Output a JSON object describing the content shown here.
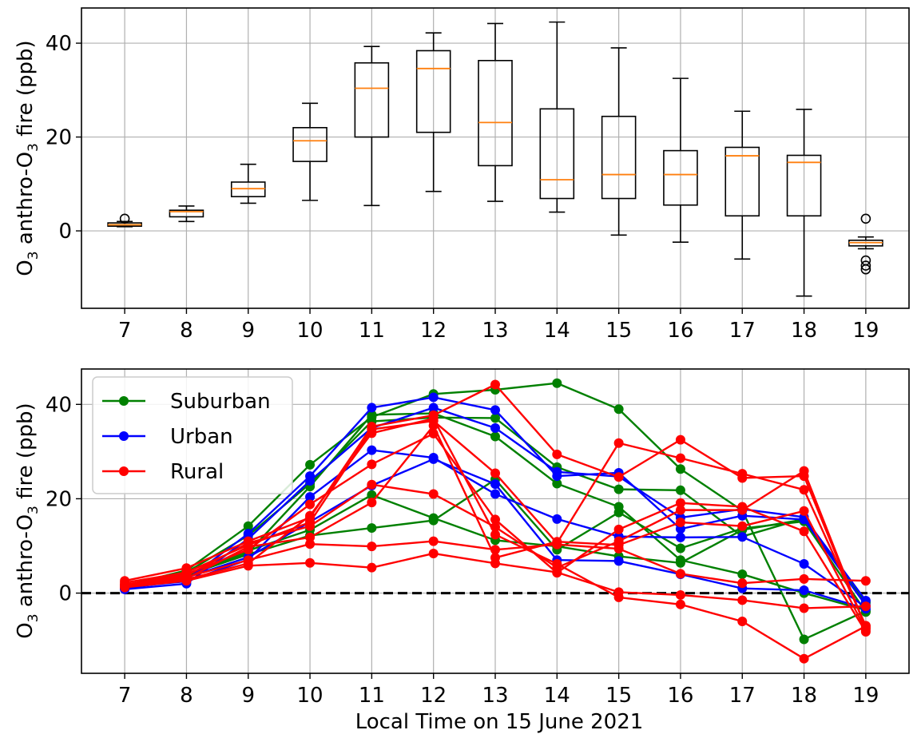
{
  "chart_data": [
    {
      "type": "box",
      "ylabel": "O3 anthro-O3 fire (ppb)",
      "ylabel_parts": {
        "pre": "O",
        "sub1": "3",
        "mid": " anthro-O",
        "sub2": "3",
        "post": " fire (ppb)"
      },
      "ylim": [
        -16.5,
        47.5
      ],
      "yticks": [
        0,
        20,
        40
      ],
      "grid": true,
      "categories": [
        "7",
        "8",
        "9",
        "10",
        "11",
        "12",
        "13",
        "14",
        "15",
        "16",
        "17",
        "18",
        "19"
      ],
      "boxes": [
        {
          "whislo": 0.9,
          "q1": 1.0,
          "med": 1.3,
          "q3": 1.7,
          "whishi": 2.0,
          "fliers": [
            2.6
          ]
        },
        {
          "whislo": 2.0,
          "q1": 3.0,
          "med": 4.1,
          "q3": 4.4,
          "whishi": 5.3,
          "fliers": []
        },
        {
          "whislo": 5.9,
          "q1": 7.3,
          "med": 9.0,
          "q3": 10.4,
          "whishi": 14.2,
          "fliers": []
        },
        {
          "whislo": 6.5,
          "q1": 14.8,
          "med": 19.2,
          "q3": 22.0,
          "whishi": 27.2,
          "fliers": []
        },
        {
          "whislo": 5.4,
          "q1": 20.0,
          "med": 30.4,
          "q3": 35.8,
          "whishi": 39.3,
          "fliers": []
        },
        {
          "whislo": 8.4,
          "q1": 21.0,
          "med": 34.6,
          "q3": 38.4,
          "whishi": 42.2,
          "fliers": []
        },
        {
          "whislo": 6.3,
          "q1": 13.9,
          "med": 23.1,
          "q3": 36.3,
          "whishi": 44.2,
          "fliers": []
        },
        {
          "whislo": 4.0,
          "q1": 6.9,
          "med": 10.9,
          "q3": 26.0,
          "whishi": 44.5,
          "fliers": []
        },
        {
          "whislo": -0.9,
          "q1": 6.9,
          "med": 12.0,
          "q3": 24.4,
          "whishi": 39.0,
          "fliers": []
        },
        {
          "whislo": -2.4,
          "q1": 5.5,
          "med": 12.0,
          "q3": 17.1,
          "whishi": 32.5,
          "fliers": []
        },
        {
          "whislo": -6.0,
          "q1": 3.2,
          "med": 16.0,
          "q3": 17.8,
          "whishi": 25.5,
          "fliers": []
        },
        {
          "whislo": -13.9,
          "q1": 3.2,
          "med": 14.6,
          "q3": 16.1,
          "whishi": 25.9,
          "fliers": []
        },
        {
          "whislo": -3.8,
          "q1": -3.2,
          "med": -2.5,
          "q3": -2.0,
          "whishi": -1.3,
          "fliers": [
            2.6,
            -6.3,
            -7.4,
            -8.2
          ]
        }
      ]
    },
    {
      "type": "line",
      "xlabel": "Local Time on 15 June 2021",
      "ylabel": "O3 anthro-O3 fire (ppb)",
      "ylabel_parts": {
        "pre": "O",
        "sub1": "3",
        "mid": " anthro-O",
        "sub2": "3",
        "post": " fire (ppb)"
      },
      "xlim": [
        6.3,
        19.7
      ],
      "ylim": [
        -17,
        47.5
      ],
      "yticks": [
        0,
        20,
        40
      ],
      "grid": true,
      "legend": "top-left",
      "reference_line": {
        "y": 0,
        "style": "dashed",
        "color": "#000000"
      },
      "x": [
        7,
        8,
        9,
        10,
        11,
        12,
        13,
        14,
        15,
        16,
        17,
        18,
        19
      ],
      "colors": {
        "Suburban": "#008000",
        "Urban": "#0000ff",
        "Rural": "#ff0000"
      },
      "legend_entries": [
        "Suburban",
        "Urban",
        "Rural"
      ],
      "series": [
        {
          "group": "Suburban",
          "values": [
            1.6,
            4.8,
            14.2,
            27.2,
            37.3,
            42.2,
            43.1,
            44.5,
            39.0,
            26.3,
            17.5,
            -9.8,
            -3.8
          ]
        },
        {
          "group": "Suburban",
          "values": [
            1.2,
            4.4,
            12.2,
            23.2,
            36.4,
            37.2,
            37.1,
            26.7,
            22.0,
            21.8,
            12.0,
            15.8,
            -2.1
          ]
        },
        {
          "group": "Suburban",
          "values": [
            1.0,
            3.6,
            8.6,
            22.6,
            37.8,
            38.1,
            33.2,
            23.2,
            18.3,
            7.0,
            4.0,
            0.0,
            -3.6
          ]
        },
        {
          "group": "Suburban",
          "values": [
            1.5,
            3.8,
            8.2,
            12.2,
            13.8,
            15.4,
            24.1,
            9.2,
            17.1,
            9.5,
            13.7,
            15.2,
            -4.0
          ]
        },
        {
          "group": "Suburban",
          "values": [
            1.3,
            4.0,
            9.0,
            13.4,
            20.8,
            15.9,
            11.2,
            9.9,
            7.8,
            6.4,
            13.4,
            15.6,
            -1.8
          ]
        },
        {
          "group": "Urban",
          "values": [
            1.0,
            2.8,
            12.6,
            24.8,
            39.3,
            41.5,
            38.8,
            24.8,
            25.5,
            13.6,
            16.4,
            15.6,
            -2.6
          ]
        },
        {
          "group": "Urban",
          "values": [
            0.8,
            2.0,
            11.5,
            23.8,
            35.0,
            39.3,
            35.0,
            25.7,
            24.7,
            16.0,
            17.8,
            16.1,
            -1.6
          ]
        },
        {
          "group": "Urban",
          "values": [
            1.2,
            2.5,
            7.1,
            20.4,
            30.3,
            28.7,
            21.0,
            15.7,
            12.0,
            11.8,
            11.9,
            6.2,
            -3.0
          ]
        },
        {
          "group": "Urban",
          "values": [
            1.1,
            3.3,
            7.6,
            15.1,
            22.8,
            28.4,
            23.1,
            7.0,
            6.8,
            4.0,
            1.0,
            0.6,
            -3.3
          ]
        },
        {
          "group": "Rural",
          "values": [
            2.6,
            5.3,
            11.0,
            16.0,
            35.3,
            37.7,
            44.2,
            29.4,
            24.6,
            32.5,
            24.4,
            24.8,
            -7.4
          ]
        },
        {
          "group": "Rural",
          "values": [
            2.2,
            4.4,
            10.2,
            15.0,
            34.7,
            36.5,
            25.4,
            10.6,
            31.8,
            28.6,
            25.3,
            21.9,
            -6.9
          ]
        },
        {
          "group": "Rural",
          "values": [
            1.8,
            4.0,
            9.2,
            18.8,
            27.3,
            33.8,
            15.6,
            4.3,
            13.5,
            19.1,
            18.3,
            13.1,
            -8.2
          ]
        },
        {
          "group": "Rural",
          "values": [
            1.7,
            3.7,
            10.6,
            14.2,
            23.0,
            21.0,
            14.0,
            5.4,
            11.0,
            17.6,
            17.6,
            25.9,
            -7.4
          ]
        },
        {
          "group": "Rural",
          "values": [
            1.3,
            3.1,
            9.8,
            11.8,
            19.2,
            35.5,
            7.5,
            10.9,
            10.2,
            15.0,
            14.2,
            17.4,
            -7.8
          ]
        },
        {
          "group": "Rural",
          "values": [
            1.6,
            3.4,
            7.0,
            10.4,
            9.9,
            11.0,
            9.2,
            10.3,
            9.4,
            4.1,
            2.1,
            3.0,
            2.6
          ]
        },
        {
          "group": "Rural",
          "values": [
            1.2,
            2.6,
            5.8,
            6.4,
            5.4,
            8.4,
            6.3,
            4.4,
            0.2,
            -0.4,
            -1.5,
            -3.2,
            -2.8
          ]
        },
        {
          "group": "Rural",
          "values": [
            1.4,
            2.9,
            6.3,
            16.4,
            33.9,
            37.0,
            12.4,
            6.2,
            -0.9,
            -2.4,
            -6.0,
            -13.9,
            -7.0
          ]
        }
      ]
    }
  ]
}
